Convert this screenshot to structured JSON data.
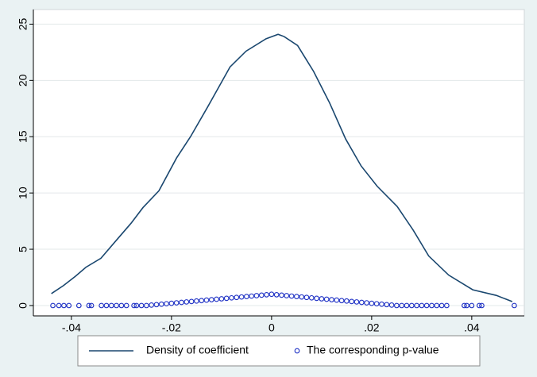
{
  "chart_data": {
    "type": "line",
    "xlim": [
      -0.0476,
      0.0505
    ],
    "ylim": [
      -0.92,
      26.3
    ],
    "xticks": [
      {
        "value": -0.04,
        "label": "-.04"
      },
      {
        "value": -0.02,
        "label": "-.02"
      },
      0,
      {
        "value": 0.02,
        "label": ".02"
      },
      {
        "value": 0.04,
        "label": ".04"
      }
    ],
    "yticks": [
      0,
      5,
      10,
      15,
      20,
      25
    ],
    "grid": true,
    "legend": "bottom",
    "series": [
      {
        "name": "Density of coefficient",
        "type": "line",
        "color": "#1a476f",
        "x": [
          -0.044,
          -0.0416,
          -0.0392,
          -0.0371,
          -0.0341,
          -0.0313,
          -0.0281,
          -0.0257,
          -0.0225,
          -0.019,
          -0.0162,
          -0.0127,
          -0.0083,
          -0.0051,
          -0.0011,
          0.0013,
          0.0025,
          0.0052,
          0.0084,
          0.0116,
          0.0148,
          0.0179,
          0.0211,
          0.0251,
          0.0283,
          0.0314,
          0.0354,
          0.0402,
          0.0449,
          0.0481
        ],
        "values": [
          1.06,
          1.77,
          2.6,
          3.4,
          4.2,
          5.65,
          7.3,
          8.7,
          10.2,
          13.1,
          15.0,
          17.7,
          21.2,
          22.6,
          23.7,
          24.1,
          23.9,
          23.1,
          20.8,
          18.0,
          14.8,
          12.4,
          10.6,
          8.8,
          6.7,
          4.4,
          2.7,
          1.4,
          0.9,
          0.35
        ]
      },
      {
        "name": "The corresponding p-value",
        "type": "scatter",
        "color": "#1c2fc4",
        "x": [
          -0.0437,
          -0.0425,
          -0.0415,
          -0.0405,
          -0.0385,
          -0.0365,
          -0.036,
          -0.034,
          -0.033,
          -0.032,
          -0.031,
          -0.03,
          -0.029,
          -0.0275,
          -0.027,
          -0.026,
          -0.025,
          -0.024,
          -0.023,
          -0.022,
          -0.021,
          -0.02,
          -0.019,
          -0.018,
          -0.017,
          -0.016,
          -0.015,
          -0.014,
          -0.013,
          -0.012,
          -0.011,
          -0.01,
          -0.009,
          -0.008,
          -0.007,
          -0.006,
          -0.005,
          -0.004,
          -0.003,
          -0.002,
          -0.001,
          0,
          0.001,
          0.002,
          0.003,
          0.004,
          0.005,
          0.006,
          0.007,
          0.008,
          0.009,
          0.01,
          0.011,
          0.012,
          0.013,
          0.014,
          0.015,
          0.016,
          0.017,
          0.018,
          0.019,
          0.02,
          0.021,
          0.022,
          0.023,
          0.024,
          0.025,
          0.026,
          0.027,
          0.028,
          0.029,
          0.03,
          0.031,
          0.032,
          0.033,
          0.034,
          0.035,
          0.0385,
          0.039,
          0.04,
          0.0415,
          0.042,
          0.0485
        ],
        "values": [
          0,
          0,
          0,
          0,
          0,
          0,
          0,
          0,
          0,
          0,
          0,
          0,
          0,
          0,
          0,
          0,
          0,
          0.04,
          0.08,
          0.12,
          0.16,
          0.2,
          0.24,
          0.28,
          0.32,
          0.36,
          0.4,
          0.44,
          0.48,
          0.52,
          0.56,
          0.6,
          0.64,
          0.68,
          0.72,
          0.76,
          0.8,
          0.84,
          0.88,
          0.92,
          0.96,
          1,
          0.96,
          0.92,
          0.88,
          0.84,
          0.8,
          0.76,
          0.72,
          0.68,
          0.64,
          0.6,
          0.56,
          0.52,
          0.48,
          0.44,
          0.4,
          0.36,
          0.32,
          0.28,
          0.24,
          0.2,
          0.16,
          0.12,
          0.08,
          0.04,
          0,
          0,
          0,
          0,
          0,
          0,
          0,
          0,
          0,
          0,
          0,
          0,
          0,
          0,
          0,
          0,
          0
        ]
      }
    ]
  }
}
